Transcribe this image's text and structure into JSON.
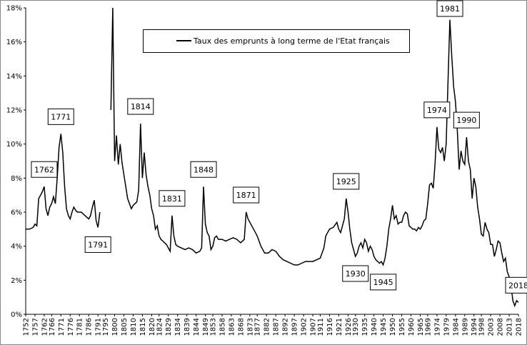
{
  "chart_data": {
    "type": "line",
    "x": [
      1752,
      1754,
      1756,
      1757,
      1758,
      1759,
      1760,
      1761,
      1762,
      1763,
      1764,
      1765,
      1766,
      1767,
      1768,
      1769,
      1770,
      1771,
      1772,
      1773,
      1774,
      1775,
      1776,
      1777,
      1778,
      1779,
      1780,
      1782,
      1784,
      1786,
      1787,
      1788,
      1789,
      1790,
      1791,
      1792,
      1795,
      1798,
      1799,
      1800,
      1801,
      1802,
      1803,
      1804,
      1805,
      1806,
      1807,
      1808,
      1809,
      1810,
      1811,
      1812,
      1813,
      1814,
      1815,
      1816,
      1817,
      1818,
      1819,
      1820,
      1821,
      1822,
      1823,
      1824,
      1825,
      1826,
      1827,
      1828,
      1829,
      1830,
      1831,
      1832,
      1833,
      1834,
      1836,
      1838,
      1840,
      1842,
      1844,
      1846,
      1847,
      1848,
      1849,
      1850,
      1851,
      1852,
      1853,
      1854,
      1855,
      1856,
      1858,
      1860,
      1862,
      1864,
      1866,
      1868,
      1870,
      1871,
      1872,
      1873,
      1875,
      1877,
      1879,
      1881,
      1883,
      1885,
      1887,
      1889,
      1891,
      1893,
      1895,
      1897,
      1899,
      1901,
      1903,
      1905,
      1907,
      1909,
      1911,
      1913,
      1914,
      1916,
      1918,
      1920,
      1921,
      1922,
      1924,
      1925,
      1926,
      1927,
      1928,
      1929,
      1930,
      1931,
      1932,
      1933,
      1934,
      1935,
      1936,
      1937,
      1938,
      1939,
      1940,
      1941,
      1942,
      1943,
      1944,
      1945,
      1946,
      1947,
      1948,
      1949,
      1950,
      1951,
      1952,
      1953,
      1954,
      1955,
      1956,
      1957,
      1958,
      1959,
      1960,
      1961,
      1962,
      1963,
      1964,
      1965,
      1966,
      1967,
      1968,
      1969,
      1970,
      1971,
      1972,
      1973,
      1974,
      1975,
      1976,
      1977,
      1978,
      1979,
      1980,
      1981,
      1982,
      1983,
      1984,
      1985,
      1986,
      1987,
      1988,
      1989,
      1990,
      1991,
      1992,
      1993,
      1994,
      1995,
      1996,
      1997,
      1998,
      1999,
      2000,
      2001,
      2002,
      2003,
      2004,
      2005,
      2006,
      2007,
      2008,
      2009,
      2010,
      2011,
      2012,
      2013,
      2014,
      2015,
      2016,
      2017,
      2018
    ],
    "series": [
      {
        "name": "Taux des emprunts à long terme de l'Etat français",
        "color": "#000000",
        "values": [
          5.0,
          5.0,
          5.1,
          5.3,
          5.2,
          6.8,
          7.0,
          7.2,
          7.5,
          6.2,
          5.8,
          6.3,
          6.5,
          6.9,
          6.5,
          8.0,
          9.8,
          10.6,
          9.5,
          7.5,
          6.2,
          5.8,
          5.6,
          6.0,
          6.3,
          6.1,
          6.0,
          6.0,
          5.8,
          5.6,
          5.8,
          6.3,
          6.7,
          5.5,
          5.1,
          6.0,
          null,
          12.0,
          18.0,
          9.0,
          10.5,
          8.8,
          10.0,
          8.9,
          8.2,
          7.5,
          6.8,
          6.5,
          6.2,
          6.4,
          6.5,
          6.6,
          7.3,
          11.2,
          8.0,
          9.5,
          8.2,
          7.5,
          7.0,
          6.2,
          5.8,
          5.0,
          5.2,
          4.6,
          4.4,
          4.3,
          4.2,
          4.1,
          3.9,
          3.7,
          5.8,
          4.6,
          4.1,
          4.0,
          3.9,
          3.8,
          3.9,
          3.8,
          3.6,
          3.7,
          3.9,
          7.5,
          5.3,
          4.8,
          4.6,
          3.8,
          4.0,
          4.5,
          4.6,
          4.4,
          4.4,
          4.3,
          4.4,
          4.5,
          4.4,
          4.2,
          4.4,
          6.0,
          5.6,
          5.4,
          5.0,
          4.6,
          4.0,
          3.6,
          3.6,
          3.8,
          3.7,
          3.4,
          3.2,
          3.1,
          3.0,
          2.9,
          2.9,
          3.0,
          3.1,
          3.1,
          3.1,
          3.2,
          3.3,
          3.9,
          4.6,
          5.0,
          5.1,
          5.4,
          5.0,
          4.8,
          5.6,
          6.8,
          6.0,
          5.0,
          4.2,
          3.8,
          3.4,
          3.6,
          4.0,
          4.2,
          3.9,
          4.4,
          4.2,
          3.7,
          4.0,
          3.8,
          3.4,
          3.2,
          3.1,
          3.0,
          3.1,
          2.9,
          3.3,
          4.0,
          5.0,
          5.6,
          6.4,
          5.6,
          5.8,
          5.3,
          5.4,
          5.4,
          5.8,
          6.0,
          5.9,
          5.2,
          5.1,
          5.0,
          5.0,
          4.9,
          5.1,
          5.0,
          5.2,
          5.5,
          5.6,
          6.5,
          7.6,
          7.7,
          7.4,
          8.9,
          11.0,
          9.7,
          9.5,
          9.8,
          9.0,
          10.0,
          13.7,
          17.3,
          15.2,
          13.4,
          12.5,
          10.8,
          8.5,
          9.6,
          9.0,
          8.8,
          10.4,
          9.0,
          8.5,
          6.8,
          8.0,
          7.5,
          6.3,
          5.6,
          4.7,
          4.6,
          5.4,
          5.0,
          4.8,
          4.1,
          4.1,
          3.4,
          3.8,
          4.3,
          4.2,
          3.6,
          3.1,
          3.3,
          2.5,
          2.2,
          1.7,
          0.8,
          0.5,
          0.8,
          0.7
        ]
      }
    ],
    "xlim": [
      1752,
      2018
    ],
    "xticks": [
      1752,
      1757,
      1762,
      1766,
      1771,
      1776,
      1781,
      1786,
      1791,
      1795,
      1800,
      1805,
      1810,
      1815,
      1820,
      1824,
      1829,
      1834,
      1839,
      1844,
      1849,
      1853,
      1858,
      1863,
      1868,
      1873,
      1877,
      1882,
      1887,
      1892,
      1897,
      1902,
      1907,
      1911,
      1916,
      1921,
      1926,
      1930,
      1935,
      1940,
      1945,
      1950,
      1955,
      1960,
      1965,
      1969,
      1974,
      1979,
      1984,
      1989,
      1994,
      1998,
      2003,
      2008,
      2013,
      2018
    ],
    "ylim": [
      0,
      18
    ],
    "yticks": [
      {
        "value": 0,
        "label": "0%"
      },
      {
        "value": 2,
        "label": "2%"
      },
      {
        "value": 4,
        "label": "4%"
      },
      {
        "value": 6,
        "label": "6%"
      },
      {
        "value": 8,
        "label": "8%"
      },
      {
        "value": 10,
        "label": "10%"
      },
      {
        "value": 12,
        "label": "12%"
      },
      {
        "value": 14,
        "label": "14%"
      },
      {
        "value": 16,
        "label": "16%"
      },
      {
        "value": 18,
        "label": "18%"
      }
    ],
    "grid": false,
    "legend": "top",
    "annotations": [
      {
        "label": "1762",
        "placement": "above"
      },
      {
        "label": "1771",
        "placement": "above"
      },
      {
        "label": "1791",
        "placement": "below"
      },
      {
        "label": "1814",
        "placement": "above"
      },
      {
        "label": "1831",
        "placement": "above"
      },
      {
        "label": "1848",
        "placement": "above"
      },
      {
        "label": "1871",
        "placement": "above"
      },
      {
        "label": "1925",
        "placement": "above"
      },
      {
        "label": "1930",
        "placement": "below"
      },
      {
        "label": "1945",
        "placement": "below"
      },
      {
        "label": "1974",
        "placement": "above"
      },
      {
        "label": "1981",
        "placement": "above"
      },
      {
        "label": "1990",
        "placement": "above"
      },
      {
        "label": "2018",
        "placement": "above"
      }
    ]
  }
}
